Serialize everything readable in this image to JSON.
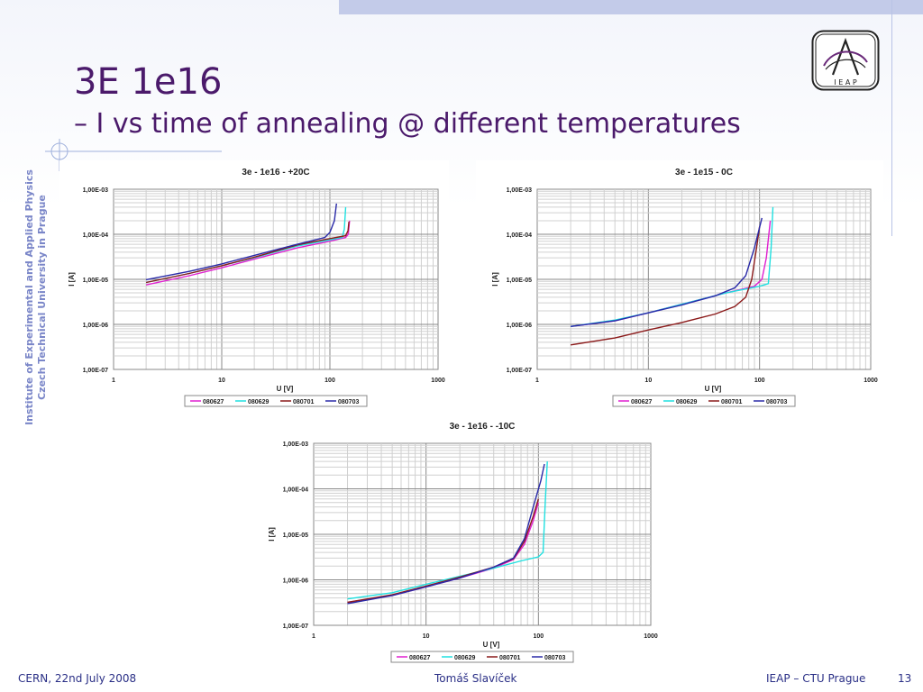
{
  "slide": {
    "title": "3E 1e16",
    "subtitle": "– I vs time of annealing @ different temperatures",
    "side_text": [
      "Institute of Experimental and Applied Physics",
      "Czech Technical University in Prague"
    ],
    "logo_text": "I  E  A  P",
    "footer": {
      "left": "CERN, 22nd July 2008",
      "center": "Tomáš Slavíček",
      "right": "IEAP – CTU Prague",
      "page": "13"
    },
    "colors": {
      "title": "#4b1a6b",
      "footer": "#2a2f86",
      "side": "#7a86c8"
    }
  },
  "chart_data": [
    {
      "type": "line",
      "title": "3e - 1e16 - +20C",
      "xlabel": "U [V]",
      "ylabel": "I [A]",
      "xscale": "log",
      "yscale": "log",
      "xlim": [
        1,
        1000
      ],
      "ylim": [
        1e-07,
        0.001
      ],
      "xticks": [
        "1",
        "10",
        "100",
        "1000"
      ],
      "yticks": [
        "1,00E-07",
        "1,00E-06",
        "1,00E-05",
        "1,00E-04",
        "1,00E-03"
      ],
      "grid": true,
      "legend": "bottom",
      "series": [
        {
          "name": "080627",
          "color": "#e020d0",
          "points": [
            [
              2,
              7.5e-06
            ],
            [
              5,
              1.2e-05
            ],
            [
              10,
              1.8e-05
            ],
            [
              20,
              2.8e-05
            ],
            [
              50,
              5e-05
            ],
            [
              100,
              7e-05
            ],
            [
              140,
              8.5e-05
            ],
            [
              148,
              0.0001
            ],
            [
              152,
              0.0002
            ]
          ]
        },
        {
          "name": "080629",
          "color": "#20e0e0",
          "points": [
            [
              2,
              8.5e-06
            ],
            [
              5,
              1.35e-05
            ],
            [
              10,
              2e-05
            ],
            [
              20,
              3e-05
            ],
            [
              50,
              5.5e-05
            ],
            [
              100,
              7.5e-05
            ],
            [
              130,
              8.5e-05
            ],
            [
              136,
              0.00013
            ],
            [
              140,
              0.0004
            ]
          ]
        },
        {
          "name": "080701",
          "color": "#8b1a1a",
          "points": [
            [
              2,
              8.5e-06
            ],
            [
              5,
              1.35e-05
            ],
            [
              10,
              2e-05
            ],
            [
              20,
              3.1e-05
            ],
            [
              50,
              5.8e-05
            ],
            [
              100,
              8e-05
            ],
            [
              140,
              9.3e-05
            ],
            [
              147,
              0.00012
            ],
            [
              150,
              0.00019
            ]
          ]
        },
        {
          "name": "080703",
          "color": "#2a2aa8",
          "points": [
            [
              2,
              9.8e-06
            ],
            [
              5,
              1.5e-05
            ],
            [
              10,
              2.2e-05
            ],
            [
              20,
              3.4e-05
            ],
            [
              50,
              6e-05
            ],
            [
              90,
              8.5e-05
            ],
            [
              100,
              0.00011
            ],
            [
              110,
              0.0002
            ],
            [
              115,
              0.00048
            ]
          ]
        }
      ]
    },
    {
      "type": "line",
      "title": "3e - 1e15 - 0C",
      "xlabel": "U [V]",
      "ylabel": "I [A]",
      "xscale": "log",
      "yscale": "log",
      "xlim": [
        1,
        1000
      ],
      "ylim": [
        1e-07,
        0.001
      ],
      "xticks": [
        "1",
        "10",
        "100",
        "1000"
      ],
      "yticks": [
        "1,00E-07",
        "1,00E-06",
        "1,00E-05",
        "1,00E-04",
        "1,00E-03"
      ],
      "grid": true,
      "legend": "bottom",
      "series": [
        {
          "name": "080627",
          "color": "#e020d0",
          "points": [
            [
              2,
              9e-07
            ],
            [
              5,
              1.2e-06
            ],
            [
              10,
              1.8e-06
            ],
            [
              20,
              2.8e-06
            ],
            [
              50,
              5e-06
            ],
            [
              90,
              7e-06
            ],
            [
              105,
              1e-05
            ],
            [
              115,
              3e-05
            ],
            [
              125,
              0.0002
            ]
          ]
        },
        {
          "name": "080629",
          "color": "#20e0e0",
          "points": [
            [
              2,
              9e-07
            ],
            [
              5,
              1.25e-06
            ],
            [
              10,
              1.8e-06
            ],
            [
              20,
              2.8e-06
            ],
            [
              50,
              5e-06
            ],
            [
              100,
              7e-06
            ],
            [
              120,
              8e-06
            ],
            [
              127,
              5e-05
            ],
            [
              132,
              0.0004
            ]
          ]
        },
        {
          "name": "080701",
          "color": "#8b1a1a",
          "points": [
            [
              2,
              3.5e-07
            ],
            [
              5,
              5e-07
            ],
            [
              10,
              7.5e-07
            ],
            [
              20,
              1.1e-06
            ],
            [
              40,
              1.7e-06
            ],
            [
              60,
              2.5e-06
            ],
            [
              75,
              4e-06
            ],
            [
              85,
              1e-05
            ],
            [
              95,
              6e-05
            ],
            [
              100,
              0.00015
            ]
          ]
        },
        {
          "name": "080703",
          "color": "#2a2aa8",
          "points": [
            [
              2,
              9e-07
            ],
            [
              5,
              1.2e-06
            ],
            [
              10,
              1.8e-06
            ],
            [
              20,
              2.7e-06
            ],
            [
              40,
              4.3e-06
            ],
            [
              60,
              6.5e-06
            ],
            [
              75,
              1.2e-05
            ],
            [
              90,
              5e-05
            ],
            [
              105,
              0.00023
            ]
          ]
        }
      ]
    },
    {
      "type": "line",
      "title": "3e - 1e16 - -10C",
      "xlabel": "U [V]",
      "ylabel": "I [A]",
      "xscale": "log",
      "yscale": "log",
      "xlim": [
        1,
        1000
      ],
      "ylim": [
        1e-07,
        0.001
      ],
      "xticks": [
        "1",
        "10",
        "100",
        "1000"
      ],
      "yticks": [
        "1,00E-07",
        "1,00E-06",
        "1,00E-05",
        "1,00E-04",
        "1,00E-03"
      ],
      "grid": true,
      "legend": "bottom",
      "series": [
        {
          "name": "080627",
          "color": "#e020d0",
          "points": [
            [
              2,
              3.2e-07
            ],
            [
              5,
              4.5e-07
            ],
            [
              10,
              7e-07
            ],
            [
              20,
              1.1e-06
            ],
            [
              40,
              1.8e-06
            ],
            [
              60,
              2.8e-06
            ],
            [
              75,
              6e-06
            ],
            [
              90,
              2e-05
            ],
            [
              100,
              5e-05
            ]
          ]
        },
        {
          "name": "080629",
          "color": "#20e0e0",
          "points": [
            [
              2,
              3.8e-07
            ],
            [
              5,
              5.2e-07
            ],
            [
              10,
              8e-07
            ],
            [
              20,
              1.2e-06
            ],
            [
              40,
              1.8e-06
            ],
            [
              70,
              2.6e-06
            ],
            [
              100,
              3.2e-06
            ],
            [
              110,
              4e-06
            ],
            [
              115,
              5e-05
            ],
            [
              120,
              0.0004
            ]
          ]
        },
        {
          "name": "080701",
          "color": "#8b1a1a",
          "points": [
            [
              2,
              3.2e-07
            ],
            [
              5,
              4.7e-07
            ],
            [
              10,
              7.3e-07
            ],
            [
              20,
              1.15e-06
            ],
            [
              40,
              1.9e-06
            ],
            [
              60,
              2.9e-06
            ],
            [
              75,
              7e-06
            ],
            [
              90,
              2.5e-05
            ],
            [
              100,
              6e-05
            ]
          ]
        },
        {
          "name": "080703",
          "color": "#2a2aa8",
          "points": [
            [
              2,
              3e-07
            ],
            [
              5,
              4.5e-07
            ],
            [
              10,
              7e-07
            ],
            [
              20,
              1.1e-06
            ],
            [
              40,
              1.9e-06
            ],
            [
              60,
              3e-06
            ],
            [
              75,
              8e-06
            ],
            [
              90,
              4e-05
            ],
            [
              105,
              0.00015
            ],
            [
              113,
              0.00035
            ]
          ]
        }
      ]
    }
  ]
}
